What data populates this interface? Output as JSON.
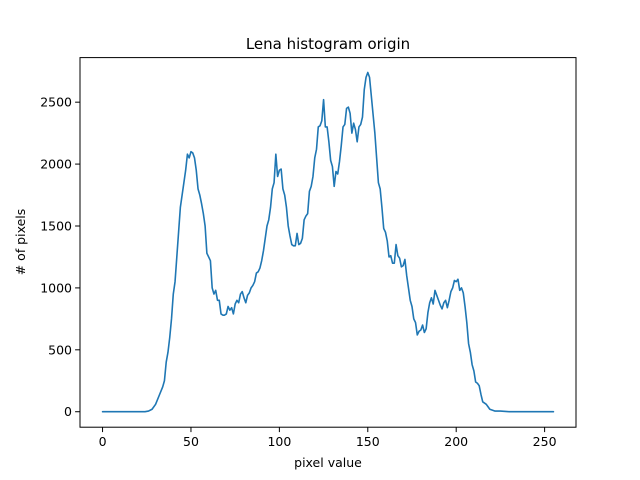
{
  "chart_data": {
    "type": "line",
    "title": "Lena histogram origin",
    "xlabel": "pixel value",
    "ylabel": "# of pixels",
    "xlim": [
      -12.75,
      267.75
    ],
    "ylim": [
      -125,
      2860
    ],
    "xticks": [
      0,
      50,
      100,
      150,
      200,
      250
    ],
    "yticks": [
      0,
      500,
      1000,
      1500,
      2000,
      2500
    ],
    "grid": false,
    "legend": "none",
    "series": [
      {
        "color": "#1f77b4",
        "points": [
          [
            0,
            0
          ],
          [
            5,
            0
          ],
          [
            10,
            0
          ],
          [
            15,
            0
          ],
          [
            20,
            0
          ],
          [
            24,
            0
          ],
          [
            26,
            5
          ],
          [
            28,
            20
          ],
          [
            30,
            60
          ],
          [
            32,
            130
          ],
          [
            34,
            200
          ],
          [
            35,
            250
          ],
          [
            36,
            400
          ],
          [
            37,
            480
          ],
          [
            38,
            600
          ],
          [
            39,
            750
          ],
          [
            40,
            950
          ],
          [
            41,
            1050
          ],
          [
            42,
            1250
          ],
          [
            43,
            1450
          ],
          [
            44,
            1650
          ],
          [
            45,
            1750
          ],
          [
            46,
            1850
          ],
          [
            47,
            1950
          ],
          [
            48,
            2080
          ],
          [
            49,
            2050
          ],
          [
            50,
            2100
          ],
          [
            51,
            2090
          ],
          [
            52,
            2050
          ],
          [
            53,
            1950
          ],
          [
            54,
            1800
          ],
          [
            55,
            1750
          ],
          [
            56,
            1680
          ],
          [
            57,
            1600
          ],
          [
            58,
            1500
          ],
          [
            59,
            1280
          ],
          [
            60,
            1250
          ],
          [
            61,
            1220
          ],
          [
            62,
            1000
          ],
          [
            63,
            950
          ],
          [
            64,
            980
          ],
          [
            65,
            900
          ],
          [
            66,
            900
          ],
          [
            67,
            790
          ],
          [
            68,
            780
          ],
          [
            69,
            780
          ],
          [
            70,
            790
          ],
          [
            71,
            850
          ],
          [
            72,
            820
          ],
          [
            73,
            840
          ],
          [
            74,
            790
          ],
          [
            75,
            870
          ],
          [
            76,
            900
          ],
          [
            77,
            880
          ],
          [
            78,
            950
          ],
          [
            79,
            970
          ],
          [
            80,
            920
          ],
          [
            81,
            880
          ],
          [
            82,
            940
          ],
          [
            83,
            960
          ],
          [
            84,
            1000
          ],
          [
            85,
            1020
          ],
          [
            86,
            1050
          ],
          [
            87,
            1120
          ],
          [
            88,
            1130
          ],
          [
            89,
            1160
          ],
          [
            90,
            1220
          ],
          [
            91,
            1300
          ],
          [
            92,
            1400
          ],
          [
            93,
            1500
          ],
          [
            94,
            1550
          ],
          [
            95,
            1650
          ],
          [
            96,
            1800
          ],
          [
            97,
            1850
          ],
          [
            98,
            2080
          ],
          [
            99,
            1900
          ],
          [
            100,
            1950
          ],
          [
            101,
            1960
          ],
          [
            102,
            1800
          ],
          [
            103,
            1750
          ],
          [
            104,
            1650
          ],
          [
            105,
            1500
          ],
          [
            106,
            1420
          ],
          [
            107,
            1350
          ],
          [
            108,
            1340
          ],
          [
            109,
            1340
          ],
          [
            110,
            1440
          ],
          [
            111,
            1350
          ],
          [
            112,
            1360
          ],
          [
            113,
            1400
          ],
          [
            114,
            1550
          ],
          [
            115,
            1580
          ],
          [
            116,
            1600
          ],
          [
            117,
            1780
          ],
          [
            118,
            1820
          ],
          [
            119,
            1900
          ],
          [
            120,
            2050
          ],
          [
            121,
            2120
          ],
          [
            122,
            2300
          ],
          [
            123,
            2310
          ],
          [
            124,
            2350
          ],
          [
            125,
            2520
          ],
          [
            126,
            2300
          ],
          [
            127,
            2300
          ],
          [
            128,
            2180
          ],
          [
            129,
            2030
          ],
          [
            130,
            1980
          ],
          [
            131,
            1820
          ],
          [
            132,
            1940
          ],
          [
            133,
            1920
          ],
          [
            134,
            2020
          ],
          [
            135,
            2150
          ],
          [
            136,
            2300
          ],
          [
            137,
            2320
          ],
          [
            138,
            2450
          ],
          [
            139,
            2460
          ],
          [
            140,
            2410
          ],
          [
            141,
            2250
          ],
          [
            142,
            2330
          ],
          [
            143,
            2280
          ],
          [
            144,
            2180
          ],
          [
            145,
            2300
          ],
          [
            146,
            2320
          ],
          [
            147,
            2380
          ],
          [
            148,
            2600
          ],
          [
            149,
            2700
          ],
          [
            150,
            2740
          ],
          [
            151,
            2700
          ],
          [
            152,
            2550
          ],
          [
            153,
            2400
          ],
          [
            154,
            2250
          ],
          [
            155,
            2050
          ],
          [
            156,
            1850
          ],
          [
            157,
            1800
          ],
          [
            158,
            1650
          ],
          [
            159,
            1480
          ],
          [
            160,
            1450
          ],
          [
            161,
            1380
          ],
          [
            162,
            1250
          ],
          [
            163,
            1260
          ],
          [
            164,
            1200
          ],
          [
            165,
            1200
          ],
          [
            166,
            1350
          ],
          [
            167,
            1260
          ],
          [
            168,
            1240
          ],
          [
            169,
            1170
          ],
          [
            170,
            1180
          ],
          [
            171,
            1230
          ],
          [
            172,
            1100
          ],
          [
            173,
            1000
          ],
          [
            174,
            900
          ],
          [
            175,
            850
          ],
          [
            176,
            750
          ],
          [
            177,
            720
          ],
          [
            178,
            620
          ],
          [
            179,
            650
          ],
          [
            180,
            660
          ],
          [
            181,
            700
          ],
          [
            182,
            640
          ],
          [
            183,
            670
          ],
          [
            184,
            800
          ],
          [
            185,
            880
          ],
          [
            186,
            920
          ],
          [
            187,
            870
          ],
          [
            188,
            980
          ],
          [
            189,
            940
          ],
          [
            190,
            900
          ],
          [
            191,
            860
          ],
          [
            192,
            830
          ],
          [
            193,
            880
          ],
          [
            194,
            900
          ],
          [
            195,
            840
          ],
          [
            196,
            900
          ],
          [
            197,
            970
          ],
          [
            198,
            1000
          ],
          [
            199,
            1060
          ],
          [
            200,
            1050
          ],
          [
            201,
            1070
          ],
          [
            202,
            980
          ],
          [
            203,
            1000
          ],
          [
            204,
            960
          ],
          [
            205,
            850
          ],
          [
            206,
            720
          ],
          [
            207,
            550
          ],
          [
            208,
            480
          ],
          [
            209,
            380
          ],
          [
            210,
            330
          ],
          [
            211,
            240
          ],
          [
            212,
            230
          ],
          [
            213,
            210
          ],
          [
            214,
            140
          ],
          [
            215,
            80
          ],
          [
            216,
            70
          ],
          [
            217,
            60
          ],
          [
            218,
            40
          ],
          [
            219,
            20
          ],
          [
            220,
            15
          ],
          [
            222,
            5
          ],
          [
            225,
            5
          ],
          [
            230,
            0
          ],
          [
            240,
            0
          ],
          [
            250,
            0
          ],
          [
            255,
            0
          ]
        ]
      }
    ]
  }
}
